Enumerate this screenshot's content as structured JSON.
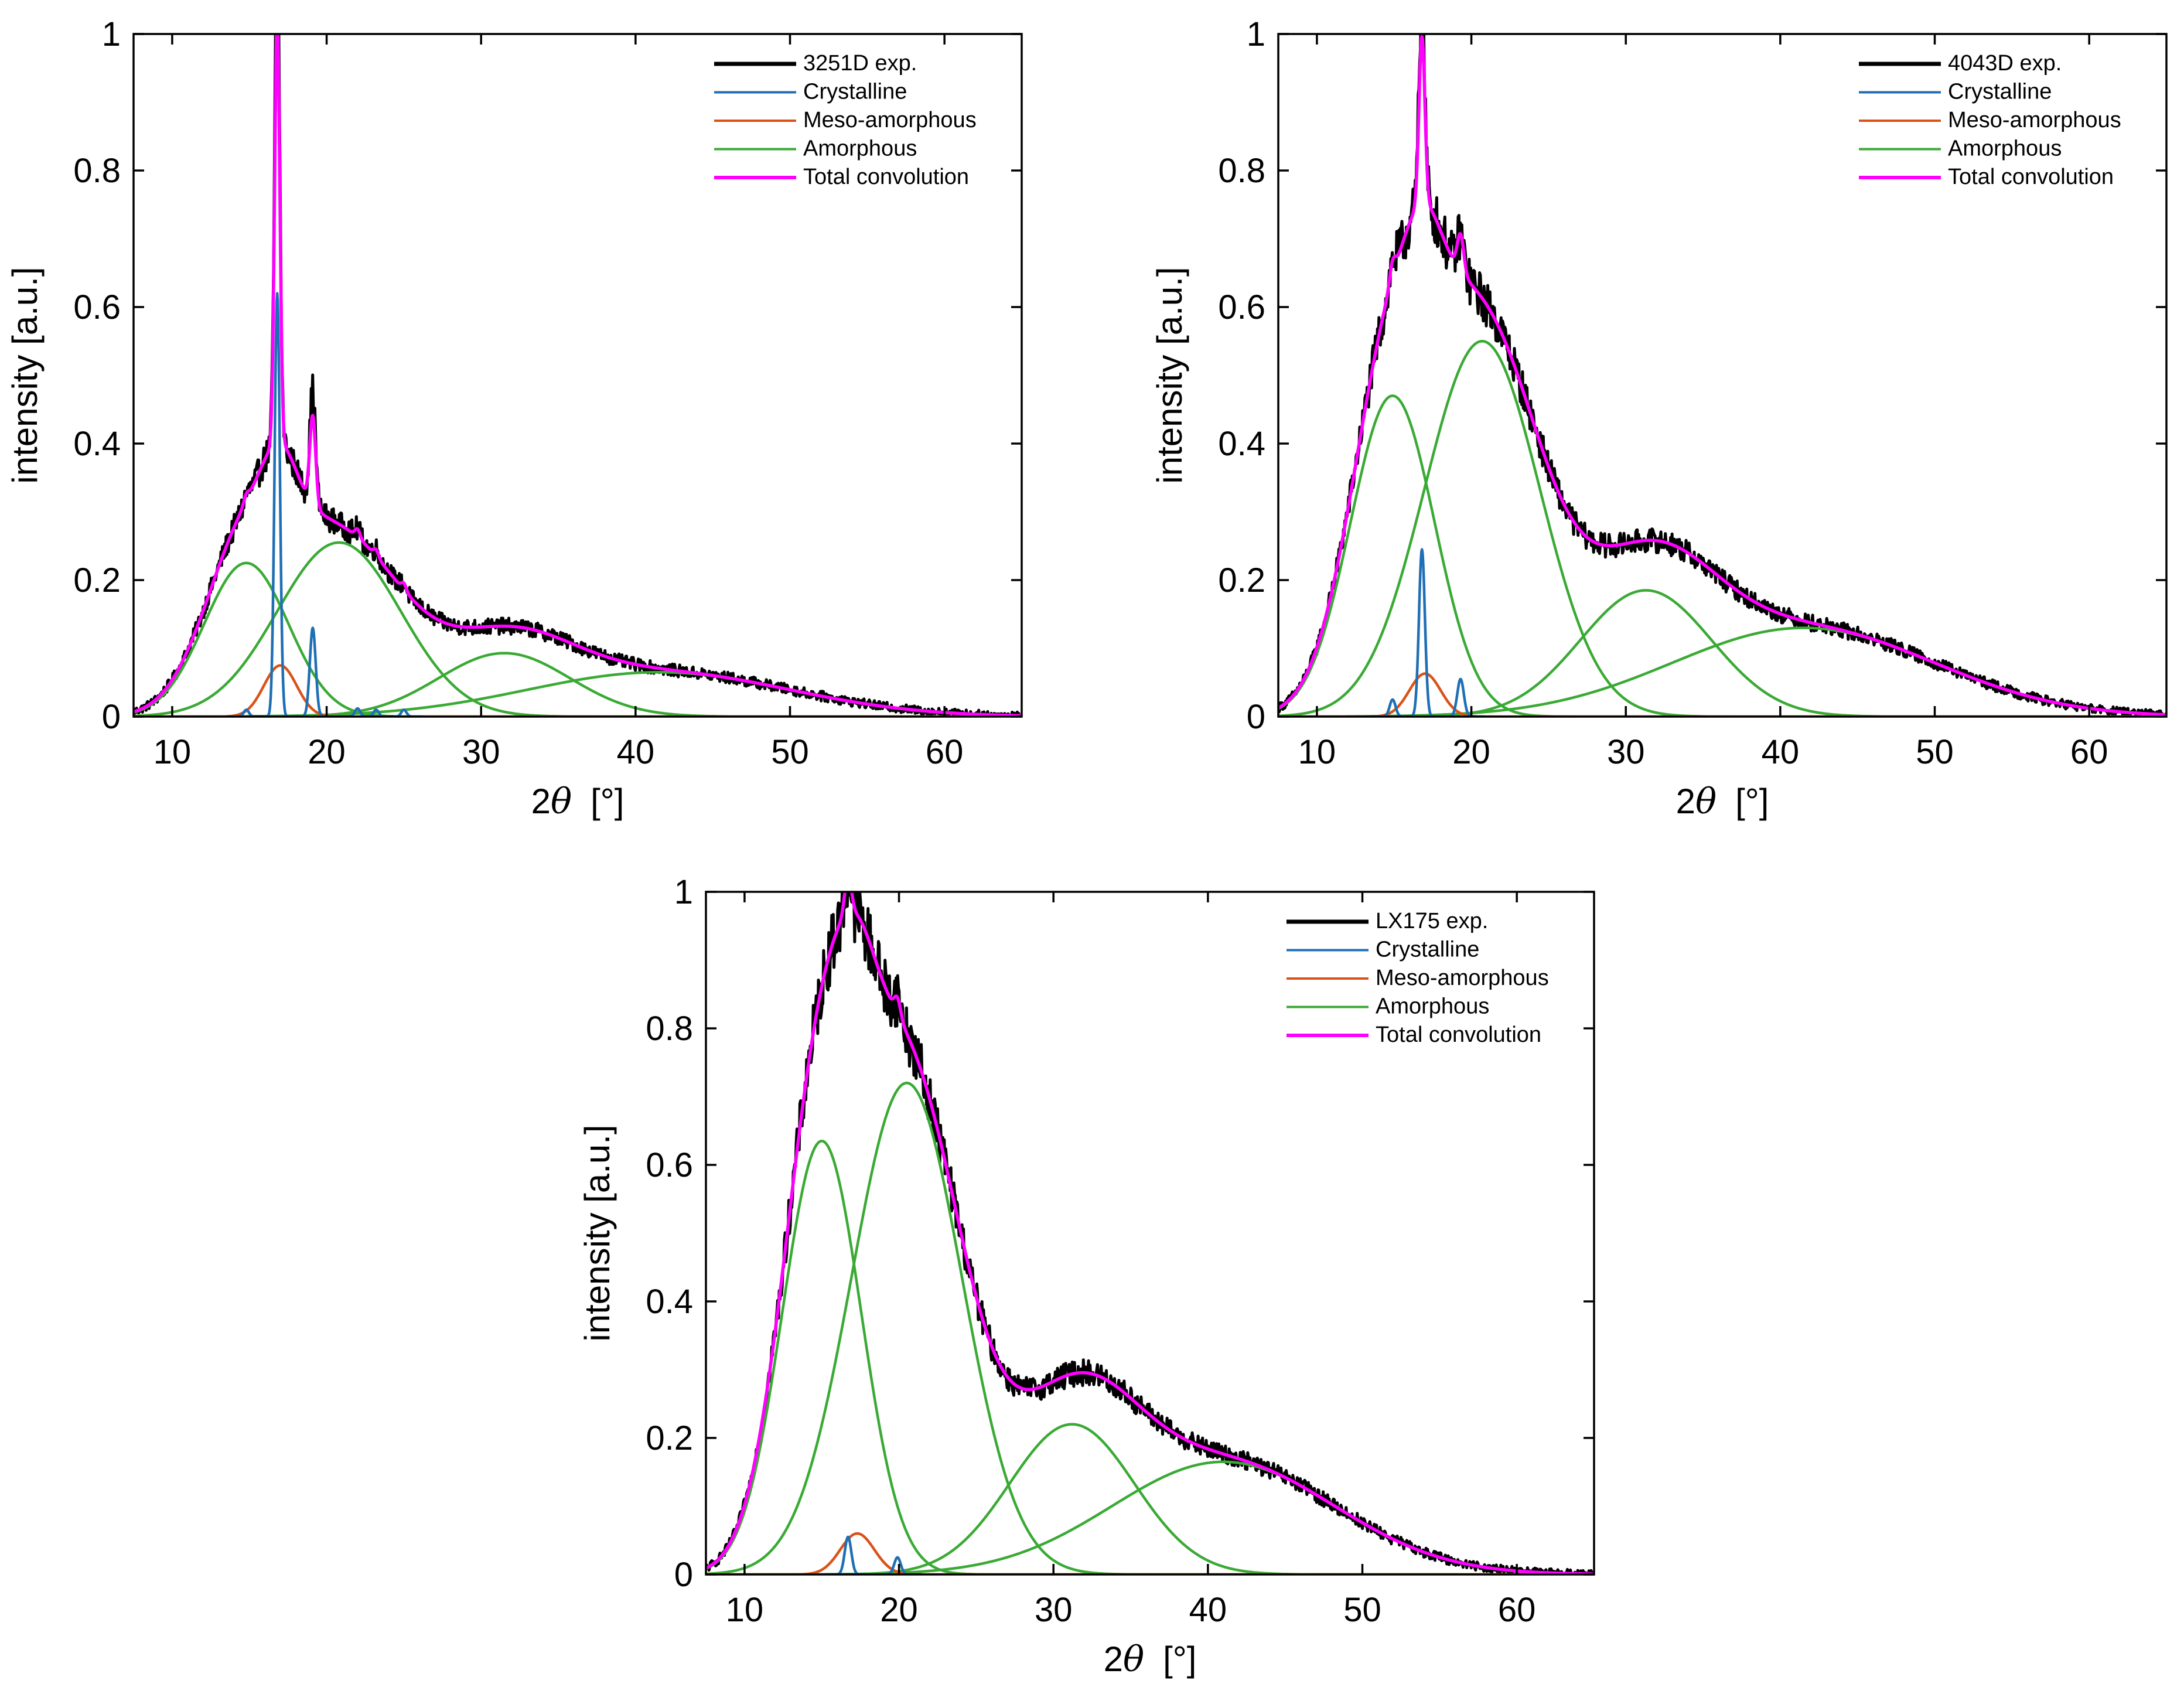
{
  "chart_data": [
    {
      "id": "3251D",
      "type": "line",
      "title": "",
      "xlabel": "2θ  [°]",
      "xlabel_parts": {
        "prefix": "2",
        "symbol": "θ",
        "unit": "[°]"
      },
      "ylabel": "intensity [a.u.]",
      "xlim": [
        7.5,
        65
      ],
      "ylim": [
        0,
        1
      ],
      "xticks": [
        10,
        20,
        30,
        40,
        50,
        60
      ],
      "yticks": [
        0,
        0.2,
        0.4,
        0.6,
        0.8,
        1
      ],
      "ytick_labels": [
        "0",
        "0.2",
        "0.4",
        "0.6",
        "0.8",
        "1"
      ],
      "grid": false,
      "legend_position": "top-right",
      "legend": [
        "3251D exp.",
        "Crystalline",
        "Meso-amorphous",
        "Amorphous",
        "Total convolution"
      ],
      "series_colors": {
        "exp": "#000000",
        "crystalline": "#1f6fb4",
        "meso": "#d95319",
        "amorphous": "#3aaa35",
        "total": "#ff00ff"
      },
      "components": {
        "crystalline": [
          {
            "center": 16.8,
            "height": 0.62,
            "fwhm": 0.4
          },
          {
            "center": 19.1,
            "height": 0.13,
            "fwhm": 0.45
          },
          {
            "center": 14.8,
            "height": 0.01,
            "fwhm": 0.4
          },
          {
            "center": 22.0,
            "height": 0.012,
            "fwhm": 0.4
          },
          {
            "center": 23.2,
            "height": 0.01,
            "fwhm": 0.4
          },
          {
            "center": 25.0,
            "height": 0.01,
            "fwhm": 0.4
          }
        ],
        "meso": [
          {
            "center": 17.0,
            "height": 0.075,
            "fwhm": 2.5
          }
        ],
        "amorphous": [
          {
            "center": 14.8,
            "height": 0.225,
            "fwhm": 6.4
          },
          {
            "center": 20.8,
            "height": 0.255,
            "fwhm": 9.4
          },
          {
            "center": 31.5,
            "height": 0.093,
            "fwhm": 10.0
          },
          {
            "center": 41.5,
            "height": 0.065,
            "fwhm": 20.0
          }
        ]
      },
      "exp_extra": [
        {
          "center": 16.8,
          "height": 0.1,
          "fwhm": 0.35
        },
        {
          "center": 19.1,
          "height": 0.035,
          "fwhm": 0.4
        }
      ]
    },
    {
      "id": "4043D",
      "type": "line",
      "title": "",
      "xlabel": "2θ  [°]",
      "xlabel_parts": {
        "prefix": "2",
        "symbol": "θ",
        "unit": "[°]"
      },
      "ylabel": "intensity [a.u.]",
      "xlim": [
        7.5,
        65
      ],
      "ylim": [
        0,
        1
      ],
      "xticks": [
        10,
        20,
        30,
        40,
        50,
        60
      ],
      "yticks": [
        0,
        0.2,
        0.4,
        0.6,
        0.8,
        1
      ],
      "ytick_labels": [
        "0",
        "0.2",
        "0.4",
        "0.6",
        "0.8",
        "1"
      ],
      "grid": false,
      "legend_position": "top-right",
      "legend": [
        "4043D exp.",
        "Crystalline",
        "Meso-amorphous",
        "Amorphous",
        "Total convolution"
      ],
      "series_colors": {
        "exp": "#000000",
        "crystalline": "#1f6fb4",
        "meso": "#d95319",
        "amorphous": "#3aaa35",
        "total": "#ff00ff"
      },
      "components": {
        "crystalline": [
          {
            "center": 16.8,
            "height": 0.245,
            "fwhm": 0.45
          },
          {
            "center": 19.3,
            "height": 0.055,
            "fwhm": 0.5
          },
          {
            "center": 14.9,
            "height": 0.025,
            "fwhm": 0.45
          }
        ],
        "meso": [
          {
            "center": 17.0,
            "height": 0.063,
            "fwhm": 2.4
          }
        ],
        "amorphous": [
          {
            "center": 14.9,
            "height": 0.47,
            "fwhm": 6.4
          },
          {
            "center": 20.7,
            "height": 0.55,
            "fwhm": 8.8
          },
          {
            "center": 31.3,
            "height": 0.185,
            "fwhm": 10.0
          },
          {
            "center": 41.5,
            "height": 0.13,
            "fwhm": 20.0
          }
        ]
      },
      "exp_extra": [
        {
          "center": 16.8,
          "height": 0.06,
          "fwhm": 0.35
        }
      ]
    },
    {
      "id": "LX175",
      "type": "line",
      "title": "",
      "xlabel": "2θ  [°]",
      "xlabel_parts": {
        "prefix": "2",
        "symbol": "θ",
        "unit": "[°]"
      },
      "ylabel": "intensity [a.u.]",
      "xlim": [
        7.5,
        65
      ],
      "ylim": [
        0,
        1
      ],
      "xticks": [
        10,
        20,
        30,
        40,
        50,
        60
      ],
      "yticks": [
        0,
        0.2,
        0.4,
        0.6,
        0.8,
        1
      ],
      "ytick_labels": [
        "0",
        "0.2",
        "0.4",
        "0.6",
        "0.8",
        "1"
      ],
      "grid": false,
      "legend_position": "top-right",
      "legend": [
        "LX175 exp.",
        "Crystalline",
        "Meso-amorphous",
        "Amorphous",
        "Total convolution"
      ],
      "series_colors": {
        "exp": "#000000",
        "crystalline": "#1f6fb4",
        "meso": "#d95319",
        "amorphous": "#3aaa35",
        "total": "#ff00ff"
      },
      "components": {
        "crystalline": [
          {
            "center": 16.7,
            "height": 0.055,
            "fwhm": 0.5
          },
          {
            "center": 19.9,
            "height": 0.025,
            "fwhm": 0.5
          }
        ],
        "meso": [
          {
            "center": 17.3,
            "height": 0.06,
            "fwhm": 2.6
          }
        ],
        "amorphous": [
          {
            "center": 15.0,
            "height": 0.635,
            "fwhm": 6.0
          },
          {
            "center": 20.5,
            "height": 0.72,
            "fwhm": 8.4
          },
          {
            "center": 31.2,
            "height": 0.22,
            "fwhm": 9.5
          },
          {
            "center": 41.0,
            "height": 0.165,
            "fwhm": 17.0
          }
        ]
      },
      "exp_extra": []
    }
  ]
}
